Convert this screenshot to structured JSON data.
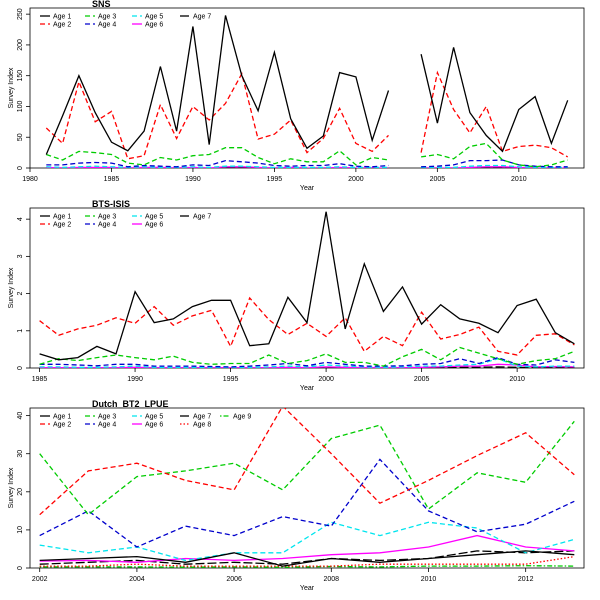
{
  "figure": {
    "background": "#ffffff"
  },
  "chart_data": [
    {
      "type": "line",
      "title": "SNS",
      "xlabel": "Year",
      "ylabel": "Survey Index",
      "xlim": [
        1980,
        2014
      ],
      "ylim": [
        0,
        260
      ],
      "xticks": [
        1980,
        1985,
        1990,
        1995,
        2000,
        2005,
        2010
      ],
      "yticks": [
        0,
        50,
        100,
        150,
        200,
        250
      ],
      "grid": false,
      "legend_placement": "top-left",
      "x": [
        1981,
        1982,
        1983,
        1984,
        1985,
        1986,
        1987,
        1988,
        1989,
        1990,
        1991,
        1992,
        1993,
        1994,
        1995,
        1996,
        1997,
        1998,
        1999,
        2000,
        2001,
        2002,
        2003,
        2004,
        2005,
        2006,
        2007,
        2008,
        2009,
        2010,
        2011,
        2012,
        2013
      ],
      "series": [
        {
          "name": "Age 1",
          "color": "#000000",
          "dash": "solid",
          "values": [
            22,
            85,
            150,
            90,
            42,
            28,
            60,
            165,
            60,
            230,
            38,
            248,
            150,
            93,
            188,
            80,
            32,
            52,
            155,
            148,
            45,
            126,
            null,
            185,
            73,
            196,
            90,
            53,
            27,
            95,
            116,
            40,
            110
          ]
        },
        {
          "name": "Age 2",
          "color": "#ff0000",
          "dash": "dashed",
          "values": [
            65,
            40,
            140,
            75,
            92,
            15,
            20,
            103,
            48,
            100,
            78,
            105,
            153,
            47,
            55,
            78,
            25,
            48,
            97,
            40,
            27,
            53,
            null,
            25,
            155,
            95,
            57,
            100,
            27,
            35,
            37,
            33,
            18
          ]
        },
        {
          "name": "Age 3",
          "color": "#00cc00",
          "dash": "dashed",
          "values": [
            22,
            13,
            27,
            25,
            22,
            8,
            5,
            17,
            13,
            20,
            22,
            33,
            33,
            17,
            7,
            15,
            10,
            10,
            28,
            5,
            17,
            13,
            null,
            18,
            22,
            15,
            35,
            40,
            13,
            5,
            2,
            5,
            13
          ]
        },
        {
          "name": "Age 4",
          "color": "#0000cc",
          "dash": "dashed",
          "values": [
            5,
            5,
            8,
            9,
            8,
            2,
            4,
            3,
            2,
            5,
            4,
            12,
            10,
            8,
            4,
            3,
            4,
            4,
            7,
            3,
            2,
            4,
            null,
            2,
            3,
            5,
            12,
            12,
            13,
            5,
            3,
            2,
            2
          ]
        },
        {
          "name": "Age 5",
          "color": "#00e5ee",
          "dash": "dashed",
          "values": [
            2,
            1,
            2,
            3,
            2,
            1,
            2,
            1,
            1,
            2,
            1,
            3,
            3,
            2,
            1,
            1,
            1,
            1,
            2,
            1,
            1,
            1,
            null,
            1,
            1,
            1,
            3,
            4,
            4,
            2,
            1,
            1,
            1
          ]
        },
        {
          "name": "Age 6",
          "color": "#ff00ff",
          "dash": "solid",
          "values": [
            1,
            0,
            1,
            1,
            1,
            0,
            1,
            1,
            0,
            1,
            0,
            2,
            2,
            1,
            0,
            1,
            0,
            0,
            1,
            0,
            0,
            0,
            null,
            0,
            0,
            0,
            1,
            2,
            2,
            1,
            0,
            0,
            0
          ]
        },
        {
          "name": "Age 7",
          "color": "#000000",
          "dash": "longdash",
          "values": [
            0,
            0,
            0,
            0,
            0,
            0,
            0,
            0,
            0,
            0,
            0,
            1,
            1,
            0,
            0,
            0,
            0,
            0,
            0,
            0,
            0,
            0,
            null,
            0,
            0,
            0,
            0,
            1,
            1,
            0,
            0,
            0,
            0
          ]
        }
      ]
    },
    {
      "type": "line",
      "title": "BTS-ISIS",
      "xlabel": "Year",
      "ylabel": "Survey Index",
      "xlim": [
        1984.5,
        2013.5
      ],
      "ylim": [
        0,
        4.3
      ],
      "xticks": [
        1985,
        1990,
        1995,
        2000,
        2005,
        2010
      ],
      "yticks": [
        0,
        1,
        2,
        3,
        4
      ],
      "grid": false,
      "legend_placement": "top-left",
      "x": [
        1985,
        1986,
        1987,
        1988,
        1989,
        1990,
        1991,
        1992,
        1993,
        1994,
        1995,
        1996,
        1997,
        1998,
        1999,
        2000,
        2001,
        2002,
        2003,
        2004,
        2005,
        2006,
        2007,
        2008,
        2009,
        2010,
        2011,
        2012,
        2013
      ],
      "series": [
        {
          "name": "Age 1",
          "color": "#000000",
          "dash": "solid",
          "values": [
            0.38,
            0.22,
            0.28,
            0.58,
            0.38,
            2.05,
            1.22,
            1.32,
            1.65,
            1.82,
            1.82,
            0.6,
            0.65,
            1.9,
            1.22,
            4.2,
            1.05,
            2.8,
            1.52,
            2.18,
            1.18,
            1.7,
            1.32,
            1.2,
            0.95,
            1.68,
            1.85,
            0.95,
            0.65
          ]
        },
        {
          "name": "Age 2",
          "color": "#ff0000",
          "dash": "dashed",
          "values": [
            1.27,
            0.88,
            1.05,
            1.15,
            1.35,
            1.2,
            1.65,
            1.15,
            1.4,
            1.55,
            0.58,
            1.88,
            1.3,
            0.9,
            1.2,
            0.85,
            1.35,
            0.45,
            0.85,
            0.6,
            1.5,
            0.78,
            0.9,
            1.1,
            0.45,
            0.35,
            0.88,
            0.92,
            0.62
          ]
        },
        {
          "name": "Age 3",
          "color": "#00cc00",
          "dash": "dashed",
          "values": [
            0.1,
            0.25,
            0.2,
            0.28,
            0.35,
            0.28,
            0.22,
            0.32,
            0.15,
            0.1,
            0.12,
            0.12,
            0.35,
            0.12,
            0.2,
            0.38,
            0.15,
            0.15,
            0.05,
            0.3,
            0.5,
            0.22,
            0.55,
            0.4,
            0.25,
            0.1,
            0.2,
            0.25,
            0.45
          ]
        },
        {
          "name": "Age 4",
          "color": "#0000cc",
          "dash": "dashed",
          "values": [
            0.1,
            0.1,
            0.08,
            0.06,
            0.1,
            0.1,
            0.05,
            0.05,
            0.05,
            0.04,
            0.03,
            0.05,
            0.08,
            0.12,
            0.06,
            0.15,
            0.1,
            0.05,
            0.05,
            0.06,
            0.1,
            0.12,
            0.25,
            0.12,
            0.28,
            0.1,
            0.08,
            0.22,
            0.15
          ]
        },
        {
          "name": "Age 5",
          "color": "#00e5ee",
          "dash": "dashed",
          "values": [
            0.03,
            0.03,
            0.02,
            0.02,
            0.03,
            0.05,
            0.02,
            0.02,
            0.02,
            0.02,
            0.02,
            0.02,
            0.03,
            0.05,
            0.03,
            0.08,
            0.05,
            0.03,
            0.02,
            0.03,
            0.05,
            0.05,
            0.08,
            0.1,
            0.25,
            0.05,
            0.03,
            0.05,
            0.05
          ]
        },
        {
          "name": "Age 6",
          "color": "#ff00ff",
          "dash": "solid",
          "values": [
            0.01,
            0.01,
            0.01,
            0.01,
            0.01,
            0.02,
            0.01,
            0.01,
            0.01,
            0.01,
            0.01,
            0.01,
            0.01,
            0.02,
            0.01,
            0.03,
            0.02,
            0.01,
            0.01,
            0.01,
            0.02,
            0.03,
            0.05,
            0.05,
            0.1,
            0.08,
            0.03,
            0.04,
            0.03
          ]
        },
        {
          "name": "Age 7",
          "color": "#000000",
          "dash": "longdash",
          "values": [
            0.0,
            0.0,
            0.0,
            0.0,
            0.0,
            0.01,
            0.0,
            0.0,
            0.0,
            0.0,
            0.0,
            0.0,
            0.0,
            0.01,
            0.0,
            0.01,
            0.01,
            0.0,
            0.0,
            0.0,
            0.01,
            0.01,
            0.02,
            0.02,
            0.03,
            0.02,
            0.01,
            0.01,
            0.01
          ]
        }
      ]
    },
    {
      "type": "line",
      "title": "Dutch_BT2_LPUE",
      "xlabel": "Year",
      "ylabel": "Survey Index",
      "xlim": [
        2001.8,
        2013.2
      ],
      "ylim": [
        0,
        42
      ],
      "xticks": [
        2002,
        2004,
        2006,
        2008,
        2010,
        2012
      ],
      "yticks": [
        0,
        10,
        20,
        30,
        40
      ],
      "grid": false,
      "legend_placement": "top-left",
      "x": [
        2002,
        2003,
        2004,
        2005,
        2006,
        2007,
        2008,
        2009,
        2010,
        2011,
        2012,
        2013
      ],
      "series": [
        {
          "name": "Age 1",
          "color": "#000000",
          "dash": "solid",
          "values": [
            2.0,
            2.5,
            3.0,
            1.5,
            4.0,
            0.5,
            2.5,
            1.5,
            2.5,
            3.5,
            4.5,
            3.5
          ]
        },
        {
          "name": "Age 2",
          "color": "#ff0000",
          "dash": "dashed",
          "values": [
            14.0,
            25.5,
            27.5,
            23.0,
            20.5,
            42.5,
            30.0,
            17.0,
            23.0,
            29.5,
            35.5,
            24.5
          ]
        },
        {
          "name": "Age 3",
          "color": "#00cc00",
          "dash": "dashed",
          "values": [
            30.0,
            14.0,
            24.0,
            25.5,
            27.5,
            20.5,
            34.0,
            37.5,
            15.5,
            25.0,
            22.5,
            38.5
          ]
        },
        {
          "name": "Age 4",
          "color": "#0000cc",
          "dash": "dashed",
          "values": [
            8.5,
            15.0,
            5.5,
            11.0,
            8.5,
            13.5,
            11.0,
            28.5,
            15.0,
            9.5,
            11.5,
            17.5
          ]
        },
        {
          "name": "Age 5",
          "color": "#00e5ee",
          "dash": "dashed",
          "values": [
            6.0,
            4.0,
            5.5,
            2.0,
            4.0,
            4.0,
            12.0,
            8.5,
            12.0,
            10.5,
            4.0,
            7.5
          ]
        },
        {
          "name": "Age 6",
          "color": "#ff00ff",
          "dash": "solid",
          "values": [
            1.8,
            2.0,
            1.5,
            2.5,
            2.0,
            2.5,
            3.5,
            4.0,
            5.5,
            8.5,
            5.5,
            4.5
          ]
        },
        {
          "name": "Age 7",
          "color": "#000000",
          "dash": "longdash",
          "values": [
            1.0,
            1.5,
            2.0,
            1.0,
            1.5,
            1.0,
            2.5,
            2.0,
            2.5,
            4.5,
            4.0,
            4.5
          ]
        },
        {
          "name": "Age 8",
          "color": "#ff0000",
          "dash": "dotted",
          "values": [
            0.5,
            0.5,
            1.0,
            0.5,
            0.5,
            0.5,
            0.5,
            1.0,
            1.0,
            1.0,
            1.0,
            3.0
          ]
        },
        {
          "name": "Age 9",
          "color": "#00cc00",
          "dash": "dotdash",
          "values": [
            0.3,
            0.3,
            0.3,
            0.2,
            0.3,
            0.2,
            0.4,
            0.3,
            0.5,
            0.5,
            0.6,
            0.5
          ]
        }
      ]
    }
  ]
}
